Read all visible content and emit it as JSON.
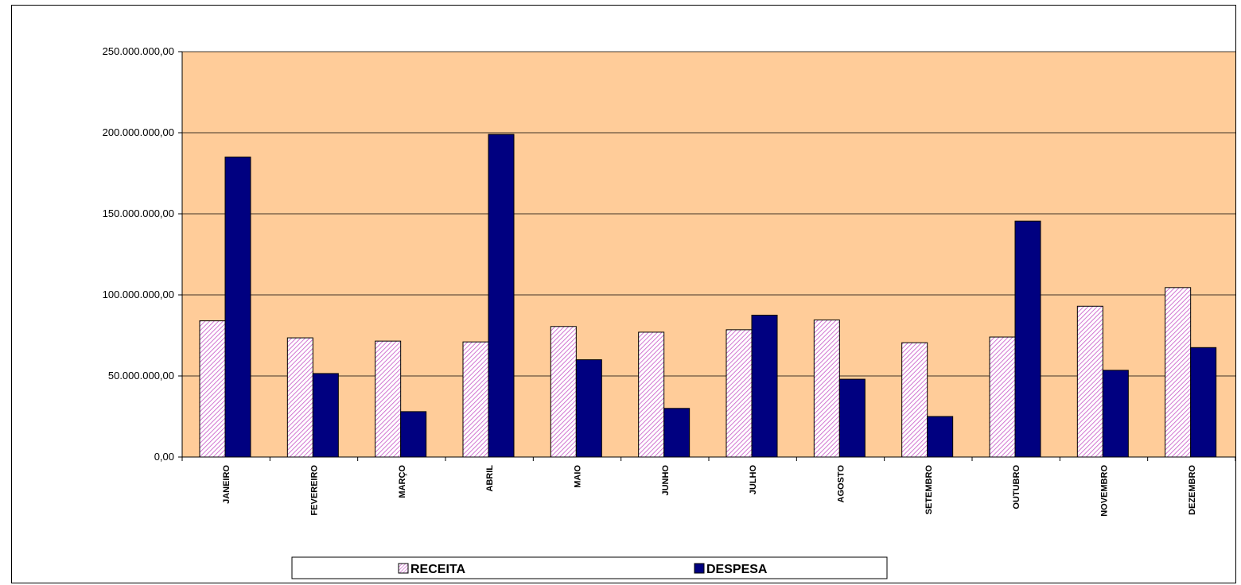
{
  "chart_data": {
    "type": "bar",
    "categories": [
      "JANEIRO",
      "FEVEREIRO",
      "MARÇO",
      "ABRIL",
      "MAIO",
      "JUNHO",
      "JULHO",
      "AGOSTO",
      "SETEMBRO",
      "OUTUBRO",
      "NOVEMBRO",
      "DEZEMBRO"
    ],
    "series": [
      {
        "name": "RECEITA",
        "color": "#cc66cc",
        "fill": "hatch-pink",
        "values": [
          84000000,
          73500000,
          71500000,
          71000000,
          80500000,
          77000000,
          78500000,
          84500000,
          70500000,
          74000000,
          93000000,
          104500000
        ]
      },
      {
        "name": "DESPESA",
        "color": "#000080",
        "fill": "solid-navy",
        "values": [
          185000000,
          51500000,
          28000000,
          199000000,
          60000000,
          30000000,
          87500000,
          48000000,
          25000000,
          145500000,
          53500000,
          67500000
        ]
      }
    ],
    "ylim": [
      0,
      250000000
    ],
    "yticks": [
      {
        "value": 0,
        "label": "0,00"
      },
      {
        "value": 50000000,
        "label": "50.000.000,00"
      },
      {
        "value": 100000000,
        "label": "100.000.000,00"
      },
      {
        "value": 150000000,
        "label": "150.000.000,00"
      },
      {
        "value": 200000000,
        "label": "200.000.000,00"
      },
      {
        "value": 250000000,
        "label": "250.000.000,00"
      }
    ],
    "title": "",
    "xlabel": "",
    "ylabel": "",
    "grid": true,
    "plot_background": "#ffcc99",
    "legend_position": "bottom"
  }
}
